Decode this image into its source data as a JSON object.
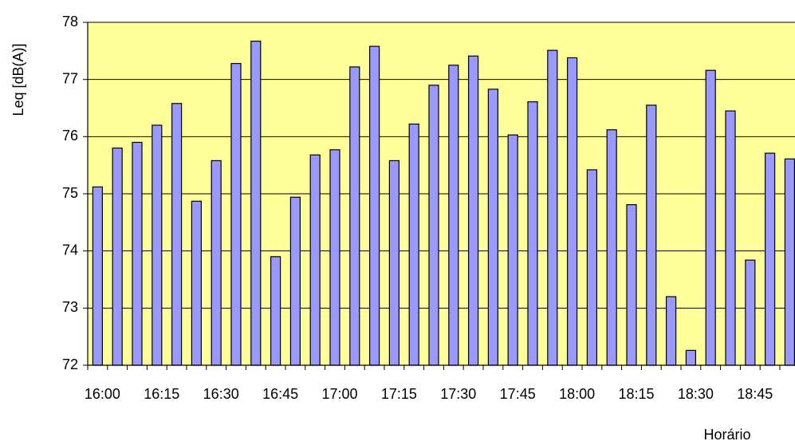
{
  "chart_data": {
    "type": "bar",
    "y_label": "Leq [dB(A)]",
    "x_label": "Horário",
    "categories": [
      "16:00",
      null,
      null,
      "16:15",
      null,
      null,
      "16:30",
      null,
      null,
      "16:45",
      null,
      null,
      "17:00",
      null,
      null,
      "17:15",
      null,
      null,
      "17:30",
      null,
      null,
      "17:45",
      null,
      null,
      "18:00",
      null,
      null,
      "18:15",
      null,
      null,
      "18:30",
      null,
      null,
      "18:45",
      null,
      null
    ],
    "values": [
      75.12,
      75.8,
      75.9,
      76.2,
      76.58,
      74.87,
      75.58,
      77.28,
      77.67,
      73.9,
      74.94,
      75.68,
      75.77,
      77.22,
      77.58,
      75.58,
      76.22,
      76.9,
      77.25,
      77.41,
      76.83,
      76.03,
      76.61,
      77.51,
      77.38,
      75.42,
      76.12,
      74.81,
      76.55,
      73.2,
      72.26,
      77.16,
      76.45,
      73.84,
      75.71,
      75.61
    ],
    "color": "#9999ff",
    "ylim": [
      72,
      78
    ],
    "yticks": [
      72,
      73,
      74,
      75,
      76,
      77,
      78
    ],
    "grid": true
  }
}
